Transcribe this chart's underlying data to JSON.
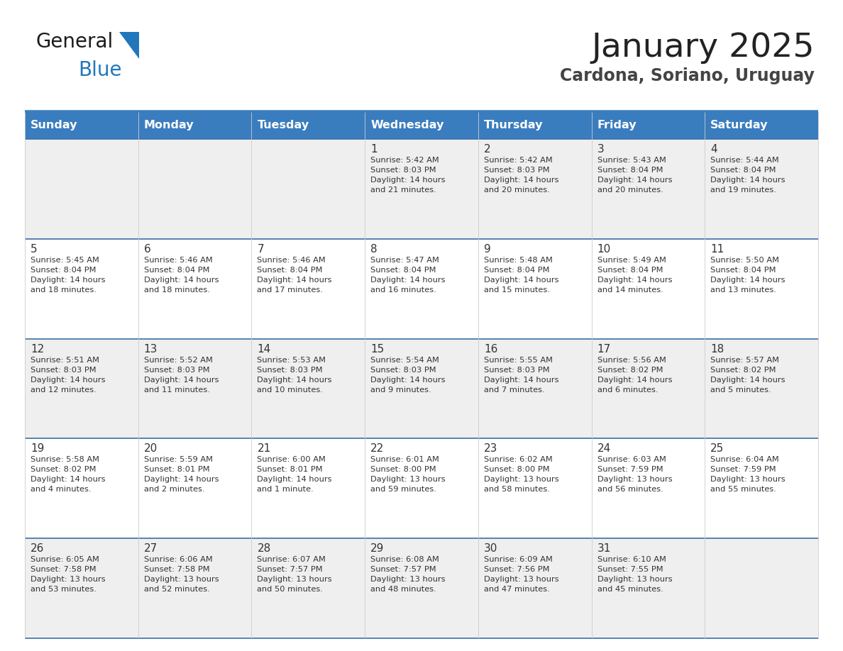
{
  "title": "January 2025",
  "subtitle": "Cardona, Soriano, Uruguay",
  "days_of_week": [
    "Sunday",
    "Monday",
    "Tuesday",
    "Wednesday",
    "Thursday",
    "Friday",
    "Saturday"
  ],
  "header_bg_color": "#3A7DBF",
  "header_text_color": "#FFFFFF",
  "row_bg_colors": [
    "#EFEFEF",
    "#FFFFFF"
  ],
  "cell_text_color": "#333333",
  "border_color": "#3A7DBF",
  "row_border_color": "#4A8AC4",
  "title_color": "#222222",
  "subtitle_color": "#444444",
  "logo_general_color": "#1A1A1A",
  "logo_blue_color": "#2277BB",
  "weeks": [
    [
      {
        "day": "",
        "info": ""
      },
      {
        "day": "",
        "info": ""
      },
      {
        "day": "",
        "info": ""
      },
      {
        "day": "1",
        "info": "Sunrise: 5:42 AM\nSunset: 8:03 PM\nDaylight: 14 hours\nand 21 minutes."
      },
      {
        "day": "2",
        "info": "Sunrise: 5:42 AM\nSunset: 8:03 PM\nDaylight: 14 hours\nand 20 minutes."
      },
      {
        "day": "3",
        "info": "Sunrise: 5:43 AM\nSunset: 8:04 PM\nDaylight: 14 hours\nand 20 minutes."
      },
      {
        "day": "4",
        "info": "Sunrise: 5:44 AM\nSunset: 8:04 PM\nDaylight: 14 hours\nand 19 minutes."
      }
    ],
    [
      {
        "day": "5",
        "info": "Sunrise: 5:45 AM\nSunset: 8:04 PM\nDaylight: 14 hours\nand 18 minutes."
      },
      {
        "day": "6",
        "info": "Sunrise: 5:46 AM\nSunset: 8:04 PM\nDaylight: 14 hours\nand 18 minutes."
      },
      {
        "day": "7",
        "info": "Sunrise: 5:46 AM\nSunset: 8:04 PM\nDaylight: 14 hours\nand 17 minutes."
      },
      {
        "day": "8",
        "info": "Sunrise: 5:47 AM\nSunset: 8:04 PM\nDaylight: 14 hours\nand 16 minutes."
      },
      {
        "day": "9",
        "info": "Sunrise: 5:48 AM\nSunset: 8:04 PM\nDaylight: 14 hours\nand 15 minutes."
      },
      {
        "day": "10",
        "info": "Sunrise: 5:49 AM\nSunset: 8:04 PM\nDaylight: 14 hours\nand 14 minutes."
      },
      {
        "day": "11",
        "info": "Sunrise: 5:50 AM\nSunset: 8:04 PM\nDaylight: 14 hours\nand 13 minutes."
      }
    ],
    [
      {
        "day": "12",
        "info": "Sunrise: 5:51 AM\nSunset: 8:03 PM\nDaylight: 14 hours\nand 12 minutes."
      },
      {
        "day": "13",
        "info": "Sunrise: 5:52 AM\nSunset: 8:03 PM\nDaylight: 14 hours\nand 11 minutes."
      },
      {
        "day": "14",
        "info": "Sunrise: 5:53 AM\nSunset: 8:03 PM\nDaylight: 14 hours\nand 10 minutes."
      },
      {
        "day": "15",
        "info": "Sunrise: 5:54 AM\nSunset: 8:03 PM\nDaylight: 14 hours\nand 9 minutes."
      },
      {
        "day": "16",
        "info": "Sunrise: 5:55 AM\nSunset: 8:03 PM\nDaylight: 14 hours\nand 7 minutes."
      },
      {
        "day": "17",
        "info": "Sunrise: 5:56 AM\nSunset: 8:02 PM\nDaylight: 14 hours\nand 6 minutes."
      },
      {
        "day": "18",
        "info": "Sunrise: 5:57 AM\nSunset: 8:02 PM\nDaylight: 14 hours\nand 5 minutes."
      }
    ],
    [
      {
        "day": "19",
        "info": "Sunrise: 5:58 AM\nSunset: 8:02 PM\nDaylight: 14 hours\nand 4 minutes."
      },
      {
        "day": "20",
        "info": "Sunrise: 5:59 AM\nSunset: 8:01 PM\nDaylight: 14 hours\nand 2 minutes."
      },
      {
        "day": "21",
        "info": "Sunrise: 6:00 AM\nSunset: 8:01 PM\nDaylight: 14 hours\nand 1 minute."
      },
      {
        "day": "22",
        "info": "Sunrise: 6:01 AM\nSunset: 8:00 PM\nDaylight: 13 hours\nand 59 minutes."
      },
      {
        "day": "23",
        "info": "Sunrise: 6:02 AM\nSunset: 8:00 PM\nDaylight: 13 hours\nand 58 minutes."
      },
      {
        "day": "24",
        "info": "Sunrise: 6:03 AM\nSunset: 7:59 PM\nDaylight: 13 hours\nand 56 minutes."
      },
      {
        "day": "25",
        "info": "Sunrise: 6:04 AM\nSunset: 7:59 PM\nDaylight: 13 hours\nand 55 minutes."
      }
    ],
    [
      {
        "day": "26",
        "info": "Sunrise: 6:05 AM\nSunset: 7:58 PM\nDaylight: 13 hours\nand 53 minutes."
      },
      {
        "day": "27",
        "info": "Sunrise: 6:06 AM\nSunset: 7:58 PM\nDaylight: 13 hours\nand 52 minutes."
      },
      {
        "day": "28",
        "info": "Sunrise: 6:07 AM\nSunset: 7:57 PM\nDaylight: 13 hours\nand 50 minutes."
      },
      {
        "day": "29",
        "info": "Sunrise: 6:08 AM\nSunset: 7:57 PM\nDaylight: 13 hours\nand 48 minutes."
      },
      {
        "day": "30",
        "info": "Sunrise: 6:09 AM\nSunset: 7:56 PM\nDaylight: 13 hours\nand 47 minutes."
      },
      {
        "day": "31",
        "info": "Sunrise: 6:10 AM\nSunset: 7:55 PM\nDaylight: 13 hours\nand 45 minutes."
      },
      {
        "day": "",
        "info": ""
      }
    ]
  ]
}
